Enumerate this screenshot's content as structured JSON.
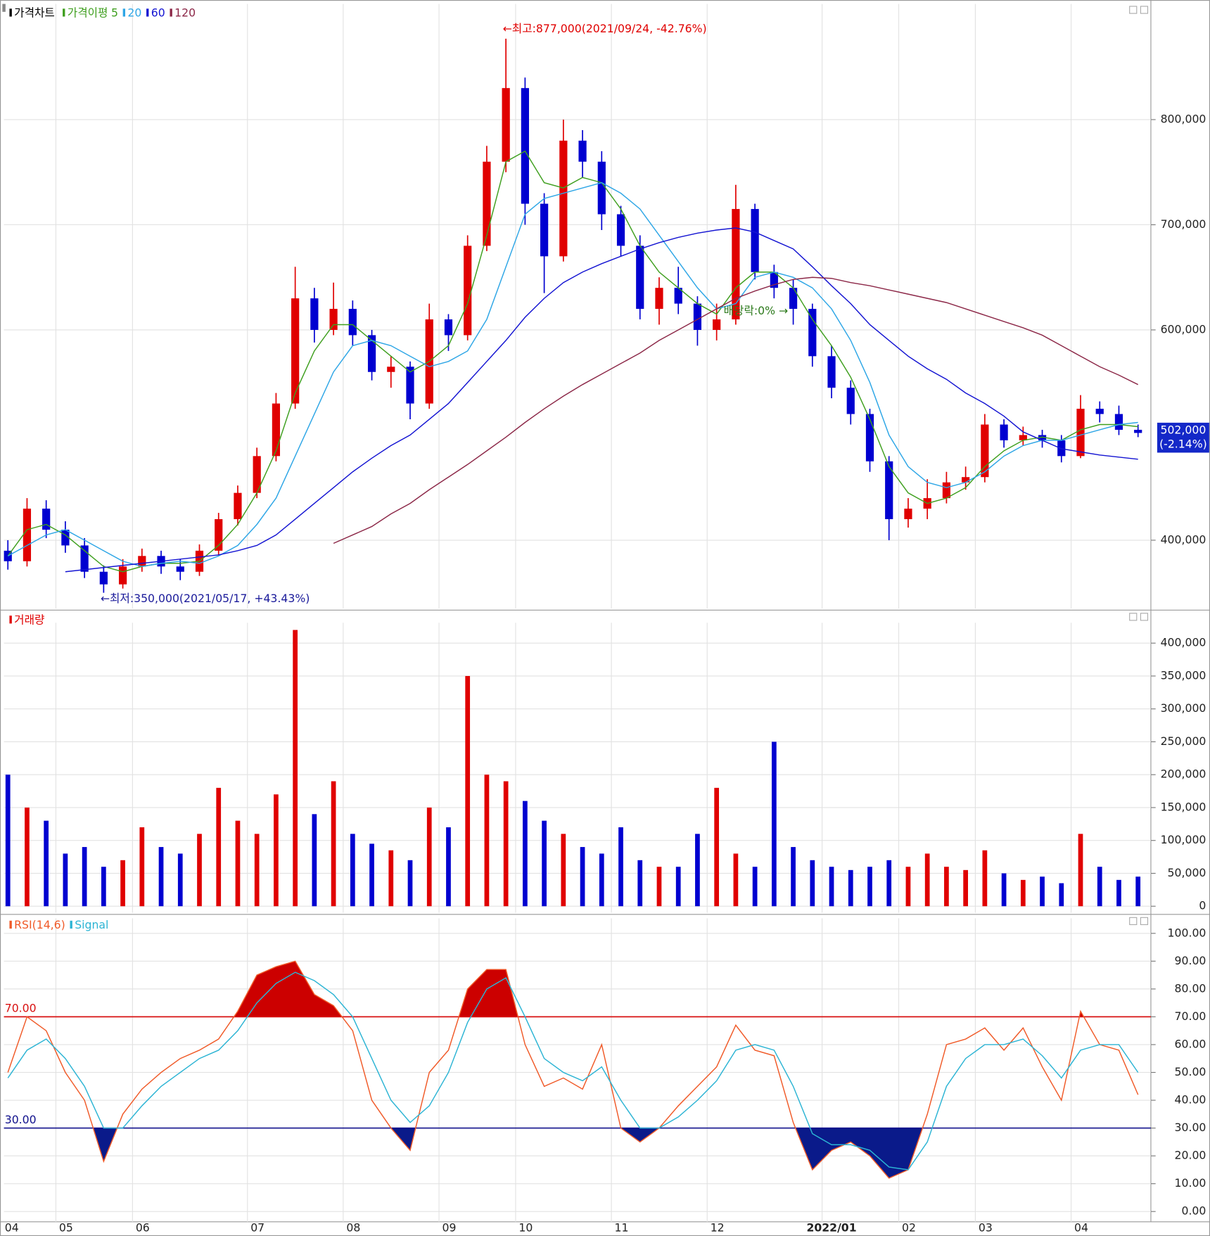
{
  "chart_data": [
    {
      "type": "candlestick",
      "series": [
        {
          "name": "가격차트",
          "up_color": "#e00000",
          "down_color": "#0000d0",
          "open": [
            390000,
            380000,
            430000,
            410000,
            395000,
            370000,
            358000,
            375000,
            385000,
            375000,
            370000,
            390000,
            420000,
            445000,
            480000,
            530000,
            630000,
            600000,
            620000,
            595000,
            560000,
            565000,
            530000,
            610000,
            595000,
            680000,
            760000,
            830000,
            720000,
            670000,
            780000,
            760000,
            710000,
            680000,
            620000,
            640000,
            625000,
            600000,
            610000,
            715000,
            655000,
            640000,
            620000,
            575000,
            545000,
            520000,
            475000,
            420000,
            430000,
            440000,
            455000,
            460000,
            510000,
            495000,
            500000,
            495000,
            480000,
            525000,
            520000,
            505000
          ],
          "high": [
            400000,
            440000,
            438000,
            418000,
            402000,
            376000,
            382000,
            392000,
            390000,
            382000,
            396000,
            426000,
            452000,
            488000,
            540000,
            660000,
            640000,
            645000,
            628000,
            600000,
            575000,
            570000,
            625000,
            615000,
            690000,
            775000,
            877000,
            840000,
            730000,
            800000,
            790000,
            770000,
            718000,
            690000,
            650000,
            660000,
            632000,
            625000,
            738000,
            720000,
            662000,
            648000,
            625000,
            585000,
            552000,
            525000,
            480000,
            440000,
            458000,
            465000,
            470000,
            520000,
            515000,
            508000,
            505000,
            500000,
            538000,
            532000,
            528000,
            510000
          ],
          "low": [
            372000,
            375000,
            402000,
            388000,
            364000,
            350000,
            354000,
            370000,
            368000,
            362000,
            366000,
            386000,
            414000,
            440000,
            475000,
            525000,
            588000,
            595000,
            585000,
            552000,
            545000,
            515000,
            525000,
            580000,
            590000,
            675000,
            750000,
            700000,
            635000,
            665000,
            745000,
            695000,
            670000,
            610000,
            605000,
            615000,
            585000,
            590000,
            605000,
            648000,
            630000,
            605000,
            565000,
            535000,
            510000,
            465000,
            400000,
            412000,
            420000,
            435000,
            448000,
            455000,
            488000,
            490000,
            488000,
            474000,
            478000,
            512000,
            500000,
            498000
          ],
          "close": [
            380000,
            430000,
            410000,
            395000,
            370000,
            358000,
            375000,
            385000,
            375000,
            370000,
            390000,
            420000,
            445000,
            480000,
            530000,
            630000,
            600000,
            620000,
            595000,
            560000,
            565000,
            530000,
            610000,
            595000,
            680000,
            760000,
            830000,
            720000,
            670000,
            780000,
            760000,
            710000,
            680000,
            620000,
            640000,
            625000,
            600000,
            610000,
            715000,
            655000,
            640000,
            620000,
            575000,
            545000,
            520000,
            475000,
            420000,
            430000,
            440000,
            455000,
            460000,
            510000,
            495000,
            500000,
            495000,
            480000,
            525000,
            520000,
            505000,
            502000
          ]
        },
        {
          "name": "5",
          "color": "#3f9f1f",
          "values": [
            385000,
            410000,
            415000,
            405000,
            390000,
            375000,
            370000,
            375000,
            378000,
            378000,
            380000,
            395000,
            415000,
            445000,
            485000,
            540000,
            580000,
            605000,
            605000,
            590000,
            575000,
            560000,
            570000,
            585000,
            625000,
            690000,
            760000,
            770000,
            740000,
            735000,
            745000,
            740000,
            715000,
            680000,
            655000,
            640000,
            625000,
            615000,
            640000,
            655000,
            655000,
            640000,
            610000,
            585000,
            555000,
            515000,
            470000,
            445000,
            435000,
            440000,
            450000,
            470000,
            485000,
            495000,
            498000,
            495000,
            505000,
            510000,
            510000,
            508000
          ]
        },
        {
          "name": "20",
          "color": "#2ea6e6",
          "values": [
            385000,
            395000,
            405000,
            410000,
            400000,
            390000,
            380000,
            375000,
            378000,
            380000,
            378000,
            385000,
            395000,
            415000,
            440000,
            480000,
            520000,
            560000,
            585000,
            590000,
            585000,
            575000,
            565000,
            570000,
            580000,
            610000,
            660000,
            710000,
            725000,
            730000,
            735000,
            740000,
            730000,
            715000,
            690000,
            665000,
            640000,
            620000,
            625000,
            650000,
            655000,
            650000,
            640000,
            620000,
            590000,
            550000,
            500000,
            470000,
            455000,
            450000,
            455000,
            465000,
            480000,
            490000,
            495000,
            495000,
            500000,
            505000,
            510000,
            512000
          ]
        },
        {
          "name": "60",
          "color": "#1414d2",
          "values": [
            null,
            null,
            null,
            370000,
            372000,
            374000,
            376000,
            378000,
            380000,
            382000,
            384000,
            386000,
            390000,
            395000,
            405000,
            420000,
            435000,
            450000,
            465000,
            478000,
            490000,
            500000,
            515000,
            530000,
            550000,
            570000,
            590000,
            612000,
            630000,
            645000,
            655000,
            663000,
            670000,
            677000,
            683000,
            688000,
            692000,
            695000,
            697000,
            693000,
            685000,
            677000,
            660000,
            642000,
            625000,
            605000,
            590000,
            575000,
            563000,
            553000,
            540000,
            530000,
            518000,
            503000,
            495000,
            487000,
            484000,
            481000,
            479000,
            477000
          ]
        },
        {
          "name": "120",
          "color": "#8c2848",
          "values": [
            null,
            null,
            null,
            null,
            null,
            null,
            null,
            null,
            null,
            null,
            null,
            null,
            null,
            null,
            null,
            null,
            null,
            397000,
            405000,
            413000,
            425000,
            435000,
            448000,
            460000,
            472000,
            485000,
            498000,
            512000,
            525000,
            537000,
            548000,
            558000,
            568000,
            578000,
            590000,
            600000,
            610000,
            620000,
            630000,
            637000,
            643000,
            648000,
            650000,
            649000,
            645000,
            642000,
            638000,
            634000,
            630000,
            626000,
            620000,
            614000,
            608000,
            602000,
            595000,
            585000,
            575000,
            565000,
            557000,
            548000
          ]
        }
      ],
      "ma_label": "가격이평",
      "ylim": [
        335000,
        910000
      ],
      "yticks": [
        {
          "value": 400000,
          "label": "400,000"
        },
        {
          "value": 600000,
          "label": "600,000"
        },
        {
          "value": 700000,
          "label": "700,000"
        },
        {
          "value": 800000,
          "label": "800,000"
        }
      ],
      "current_price": {
        "value": 502000,
        "label": "502,000",
        "change": "(-2.14%)"
      },
      "annotations": {
        "high": "←최고:877,000(2021/09/24, -42.76%)",
        "low": "←최저:350,000(2021/05/17, +43.43%)",
        "ex_dividend": "배당락:0% →"
      },
      "grid": true
    },
    {
      "type": "bar",
      "series": [
        {
          "name": "거래량",
          "color": "#e00000",
          "values": [
            200000,
            150000,
            130000,
            80000,
            90000,
            60000,
            70000,
            120000,
            90000,
            80000,
            110000,
            180000,
            130000,
            110000,
            170000,
            420000,
            140000,
            190000,
            110000,
            95000,
            85000,
            70000,
            150000,
            120000,
            350000,
            200000,
            190000,
            160000,
            130000,
            110000,
            90000,
            80000,
            120000,
            70000,
            60000,
            60000,
            110000,
            180000,
            80000,
            60000,
            250000,
            90000,
            70000,
            60000,
            55000,
            60000,
            70000,
            60000,
            80000,
            60000,
            55000,
            85000,
            50000,
            40000,
            45000,
            35000,
            110000,
            60000,
            40000,
            45000
          ]
        }
      ],
      "ylim": [
        -10000,
        431000
      ],
      "yticks": [
        0,
        {
          "value": 50000,
          "label": "50,000"
        },
        {
          "value": 100000,
          "label": "100,000"
        },
        {
          "value": 150000,
          "label": "150,000"
        },
        {
          "value": 200000,
          "label": "200,000"
        },
        {
          "value": 250000,
          "label": "250,000"
        },
        {
          "value": 300000,
          "label": "300,000"
        },
        {
          "value": 350000,
          "label": "350,000"
        },
        {
          "value": 400000,
          "label": "400,000"
        }
      ],
      "grid": true
    },
    {
      "type": "line",
      "categories": [
        "04",
        null,
        null,
        "05",
        null,
        null,
        null,
        "06",
        null,
        null,
        null,
        null,
        null,
        "07",
        null,
        null,
        null,
        null,
        "08",
        null,
        null,
        null,
        null,
        "09",
        null,
        null,
        null,
        "10",
        null,
        null,
        null,
        null,
        "11",
        null,
        null,
        null,
        null,
        "12",
        null,
        null,
        null,
        null,
        null,
        "2022/01",
        null,
        null,
        null,
        "02",
        null,
        null,
        null,
        "03",
        null,
        null,
        null,
        null,
        "04",
        null,
        null,
        null
      ],
      "series": [
        {
          "name": "RSI(14,6)",
          "color": "#f05a28",
          "values": [
            50,
            70,
            65,
            50,
            40,
            18,
            35,
            44,
            50,
            55,
            58,
            62,
            72,
            85,
            88,
            90,
            78,
            74,
            65,
            40,
            30,
            22,
            50,
            58,
            80,
            87,
            87,
            60,
            45,
            48,
            44,
            60,
            30,
            25,
            30,
            38,
            45,
            52,
            67,
            58,
            56,
            32,
            15,
            22,
            25,
            20,
            12,
            15,
            35,
            60,
            62,
            66,
            58,
            66,
            52,
            40,
            72,
            60,
            58,
            42
          ]
        },
        {
          "name": "Signal",
          "color": "#2cb4d4",
          "values": [
            48,
            58,
            62,
            55,
            45,
            30,
            30,
            38,
            45,
            50,
            55,
            58,
            65,
            75,
            82,
            86,
            83,
            78,
            70,
            55,
            40,
            32,
            38,
            50,
            68,
            80,
            84,
            70,
            55,
            50,
            47,
            52,
            40,
            30,
            30,
            34,
            40,
            47,
            58,
            60,
            58,
            45,
            28,
            24,
            24,
            22,
            16,
            15,
            25,
            45,
            55,
            60,
            60,
            62,
            56,
            48,
            58,
            60,
            60,
            50
          ]
        }
      ],
      "reference_lines": [
        {
          "value": 70,
          "label": "70.00",
          "color": "#d81010",
          "fill": "#cc0000"
        },
        {
          "value": 30,
          "label": "30.00",
          "color": "#10108c",
          "fill": "#0a1a8a"
        }
      ],
      "ylim": [
        -3.7,
        105.4
      ],
      "yticks": [
        {
          "value": 0,
          "label": "0.00"
        },
        {
          "value": 10,
          "label": "10.00"
        },
        {
          "value": 20,
          "label": "20.00"
        },
        {
          "value": 30,
          "label": "30.00"
        },
        {
          "value": 40,
          "label": "40.00"
        },
        {
          "value": 50,
          "label": "50.00"
        },
        {
          "value": 60,
          "label": "60.00"
        },
        {
          "value": 70,
          "label": "70.00"
        },
        {
          "value": 80,
          "label": "80.00"
        },
        {
          "value": 90,
          "label": "90.00"
        },
        {
          "value": 100,
          "label": "100.00"
        }
      ],
      "grid": true
    }
  ]
}
